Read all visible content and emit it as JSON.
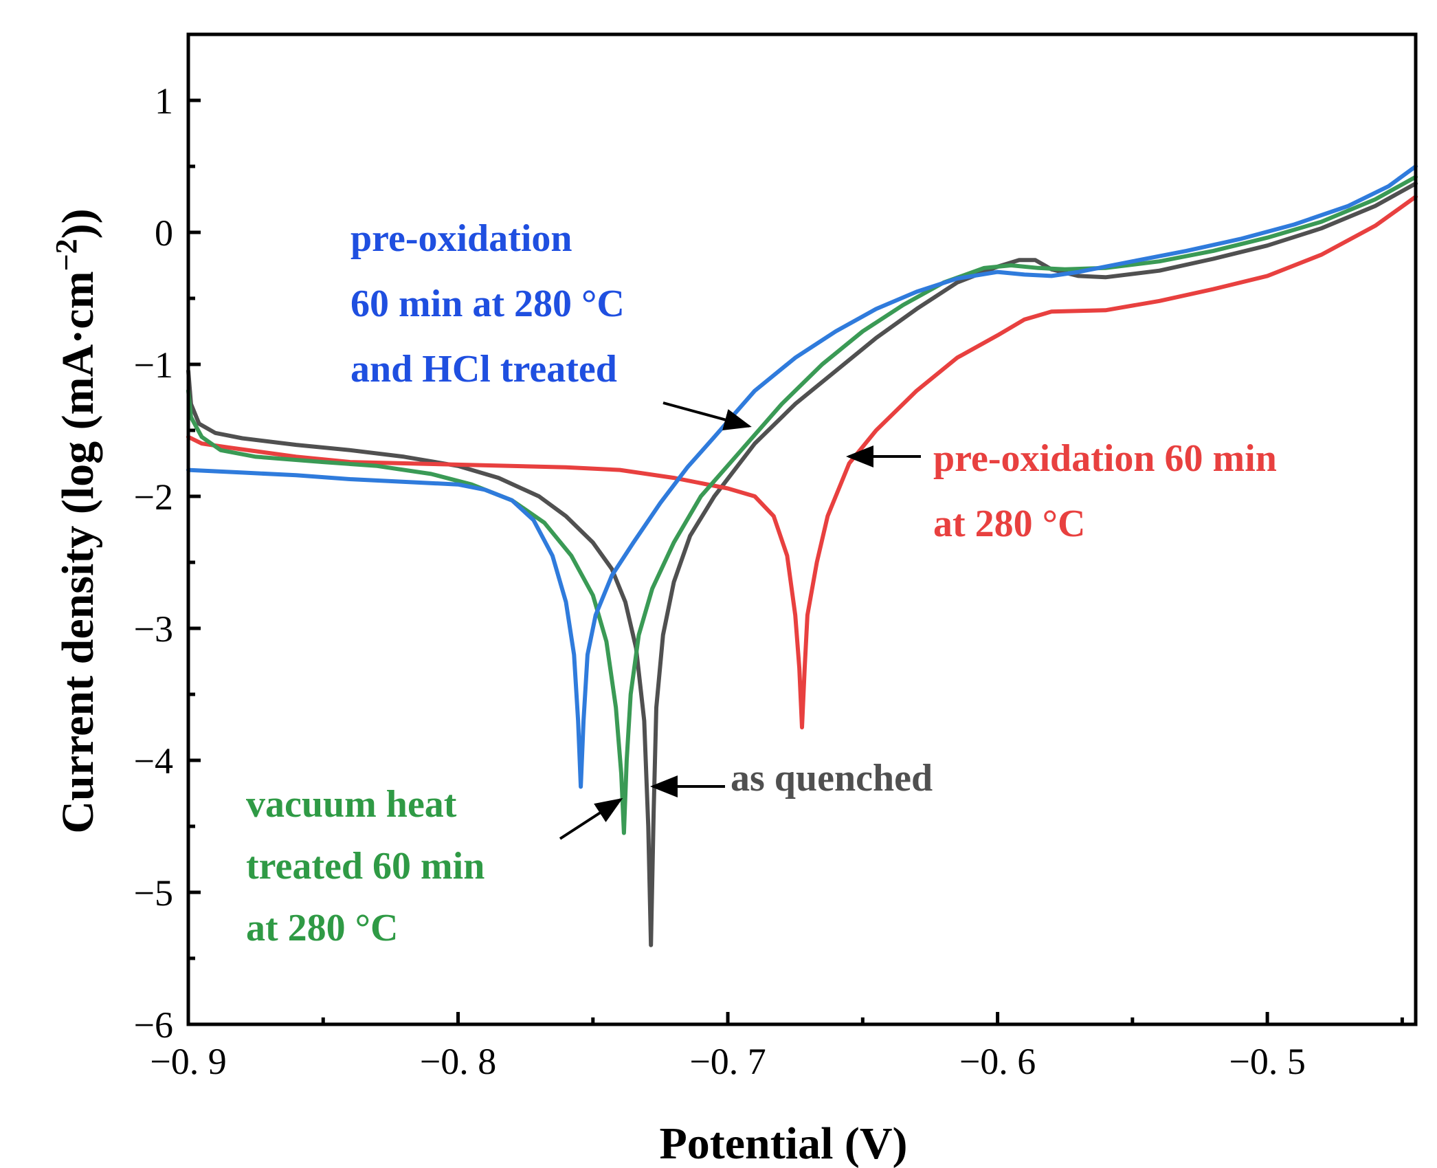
{
  "chart_data": {
    "type": "line",
    "title": "",
    "xlabel": "Potential (V)",
    "ylabel": "Current density (log (mA·cm",
    "ylabel_sup": "−2",
    "ylabel_end": "))",
    "xlim": [
      -0.9,
      -0.445
    ],
    "ylim": [
      -6,
      1.5
    ],
    "xticks": [
      -0.9,
      -0.8,
      -0.7,
      -0.6,
      -0.5
    ],
    "xtick_labels": [
      "−0. 9",
      "−0. 8",
      "−0. 7",
      "−0. 6",
      "−0. 5"
    ],
    "yticks": [
      1,
      0,
      -1,
      -2,
      -3,
      -4,
      -5,
      -6
    ],
    "ytick_labels": [
      "1",
      "0",
      "−1",
      "−2",
      "−3",
      "−4",
      "−5",
      "−6"
    ],
    "grid": false,
    "series": [
      {
        "name": "as quenched",
        "color": "#505050",
        "points": [
          [
            -0.9,
            -1.05
          ],
          [
            -0.899,
            -1.3
          ],
          [
            -0.896,
            -1.45
          ],
          [
            -0.89,
            -1.52
          ],
          [
            -0.88,
            -1.56
          ],
          [
            -0.86,
            -1.61
          ],
          [
            -0.84,
            -1.65
          ],
          [
            -0.82,
            -1.7
          ],
          [
            -0.8,
            -1.77
          ],
          [
            -0.785,
            -1.86
          ],
          [
            -0.77,
            -2.0
          ],
          [
            -0.76,
            -2.15
          ],
          [
            -0.75,
            -2.35
          ],
          [
            -0.743,
            -2.55
          ],
          [
            -0.738,
            -2.8
          ],
          [
            -0.734,
            -3.15
          ],
          [
            -0.731,
            -3.7
          ],
          [
            -0.7295,
            -4.5
          ],
          [
            -0.7285,
            -5.4
          ],
          [
            -0.7275,
            -4.4
          ],
          [
            -0.7265,
            -3.6
          ],
          [
            -0.724,
            -3.05
          ],
          [
            -0.72,
            -2.65
          ],
          [
            -0.714,
            -2.3
          ],
          [
            -0.705,
            -2.0
          ],
          [
            -0.69,
            -1.6
          ],
          [
            -0.675,
            -1.3
          ],
          [
            -0.66,
            -1.05
          ],
          [
            -0.645,
            -0.8
          ],
          [
            -0.63,
            -0.58
          ],
          [
            -0.615,
            -0.38
          ],
          [
            -0.6,
            -0.26
          ],
          [
            -0.592,
            -0.21
          ],
          [
            -0.586,
            -0.21
          ],
          [
            -0.58,
            -0.28
          ],
          [
            -0.57,
            -0.33
          ],
          [
            -0.56,
            -0.34
          ],
          [
            -0.54,
            -0.29
          ],
          [
            -0.52,
            -0.2
          ],
          [
            -0.5,
            -0.1
          ],
          [
            -0.48,
            0.03
          ],
          [
            -0.46,
            0.2
          ],
          [
            -0.445,
            0.37
          ]
        ]
      },
      {
        "name": "pre-oxidation 60 min at 280 °C",
        "color": "#e8403f",
        "points": [
          [
            -0.9,
            -1.55
          ],
          [
            -0.895,
            -1.6
          ],
          [
            -0.885,
            -1.63
          ],
          [
            -0.86,
            -1.7
          ],
          [
            -0.84,
            -1.74
          ],
          [
            -0.8,
            -1.76
          ],
          [
            -0.76,
            -1.78
          ],
          [
            -0.74,
            -1.8
          ],
          [
            -0.72,
            -1.86
          ],
          [
            -0.7,
            -1.94
          ],
          [
            -0.69,
            -2.0
          ],
          [
            -0.683,
            -2.15
          ],
          [
            -0.678,
            -2.45
          ],
          [
            -0.675,
            -2.9
          ],
          [
            -0.6735,
            -3.3
          ],
          [
            -0.6725,
            -3.75
          ],
          [
            -0.6715,
            -3.3
          ],
          [
            -0.6705,
            -2.9
          ],
          [
            -0.667,
            -2.5
          ],
          [
            -0.663,
            -2.15
          ],
          [
            -0.655,
            -1.75
          ],
          [
            -0.645,
            -1.5
          ],
          [
            -0.63,
            -1.2
          ],
          [
            -0.615,
            -0.95
          ],
          [
            -0.6,
            -0.78
          ],
          [
            -0.59,
            -0.66
          ],
          [
            -0.58,
            -0.6
          ],
          [
            -0.56,
            -0.59
          ],
          [
            -0.54,
            -0.52
          ],
          [
            -0.52,
            -0.43
          ],
          [
            -0.5,
            -0.33
          ],
          [
            -0.48,
            -0.17
          ],
          [
            -0.46,
            0.05
          ],
          [
            -0.445,
            0.27
          ]
        ]
      },
      {
        "name": "vacuum heat treated 60 min at 280 °C",
        "color": "#3a9a55",
        "points": [
          [
            -0.9,
            -1.2
          ],
          [
            -0.899,
            -1.4
          ],
          [
            -0.895,
            -1.55
          ],
          [
            -0.888,
            -1.65
          ],
          [
            -0.875,
            -1.7
          ],
          [
            -0.85,
            -1.74
          ],
          [
            -0.83,
            -1.77
          ],
          [
            -0.81,
            -1.83
          ],
          [
            -0.795,
            -1.91
          ],
          [
            -0.78,
            -2.03
          ],
          [
            -0.768,
            -2.2
          ],
          [
            -0.758,
            -2.45
          ],
          [
            -0.75,
            -2.75
          ],
          [
            -0.745,
            -3.1
          ],
          [
            -0.7415,
            -3.6
          ],
          [
            -0.7395,
            -4.1
          ],
          [
            -0.7385,
            -4.55
          ],
          [
            -0.7375,
            -4.0
          ],
          [
            -0.736,
            -3.5
          ],
          [
            -0.733,
            -3.05
          ],
          [
            -0.728,
            -2.7
          ],
          [
            -0.72,
            -2.35
          ],
          [
            -0.71,
            -2.0
          ],
          [
            -0.695,
            -1.65
          ],
          [
            -0.68,
            -1.3
          ],
          [
            -0.665,
            -1.0
          ],
          [
            -0.65,
            -0.75
          ],
          [
            -0.635,
            -0.55
          ],
          [
            -0.62,
            -0.38
          ],
          [
            -0.605,
            -0.27
          ],
          [
            -0.595,
            -0.25
          ],
          [
            -0.585,
            -0.27
          ],
          [
            -0.575,
            -0.28
          ],
          [
            -0.56,
            -0.27
          ],
          [
            -0.54,
            -0.22
          ],
          [
            -0.52,
            -0.14
          ],
          [
            -0.5,
            -0.04
          ],
          [
            -0.48,
            0.08
          ],
          [
            -0.46,
            0.25
          ],
          [
            -0.445,
            0.42
          ]
        ]
      },
      {
        "name": "pre-oxidation 60 min at 280 °C and HCl treated",
        "color": "#2f7bdc",
        "points": [
          [
            -0.9,
            -1.8
          ],
          [
            -0.88,
            -1.82
          ],
          [
            -0.86,
            -1.84
          ],
          [
            -0.84,
            -1.87
          ],
          [
            -0.82,
            -1.89
          ],
          [
            -0.8,
            -1.91
          ],
          [
            -0.79,
            -1.95
          ],
          [
            -0.78,
            -2.03
          ],
          [
            -0.772,
            -2.18
          ],
          [
            -0.765,
            -2.45
          ],
          [
            -0.76,
            -2.8
          ],
          [
            -0.757,
            -3.2
          ],
          [
            -0.7555,
            -3.7
          ],
          [
            -0.7545,
            -4.2
          ],
          [
            -0.7535,
            -3.7
          ],
          [
            -0.752,
            -3.2
          ],
          [
            -0.749,
            -2.9
          ],
          [
            -0.743,
            -2.6
          ],
          [
            -0.735,
            -2.35
          ],
          [
            -0.725,
            -2.05
          ],
          [
            -0.715,
            -1.78
          ],
          [
            -0.705,
            -1.55
          ],
          [
            -0.69,
            -1.2
          ],
          [
            -0.675,
            -0.95
          ],
          [
            -0.66,
            -0.75
          ],
          [
            -0.645,
            -0.58
          ],
          [
            -0.63,
            -0.45
          ],
          [
            -0.615,
            -0.35
          ],
          [
            -0.6,
            -0.3
          ],
          [
            -0.59,
            -0.32
          ],
          [
            -0.58,
            -0.33
          ],
          [
            -0.57,
            -0.3
          ],
          [
            -0.55,
            -0.22
          ],
          [
            -0.53,
            -0.14
          ],
          [
            -0.51,
            -0.05
          ],
          [
            -0.49,
            0.06
          ],
          [
            -0.47,
            0.2
          ],
          [
            -0.455,
            0.35
          ],
          [
            -0.445,
            0.5
          ]
        ]
      }
    ],
    "annotations": [
      {
        "lines": [
          "pre-oxidation",
          "60 min at 280 °C",
          "and HCl treated"
        ],
        "color": "#1f4fe0"
      },
      {
        "lines": [
          "pre-oxidation 60 min",
          "at 280 °C"
        ],
        "color": "#e8403f"
      },
      {
        "lines": [
          "as quenched"
        ],
        "color": "#505050"
      },
      {
        "lines": [
          "vacuum heat",
          "treated 60 min",
          "at 280 °C"
        ],
        "color": "#2f9a45"
      }
    ]
  }
}
